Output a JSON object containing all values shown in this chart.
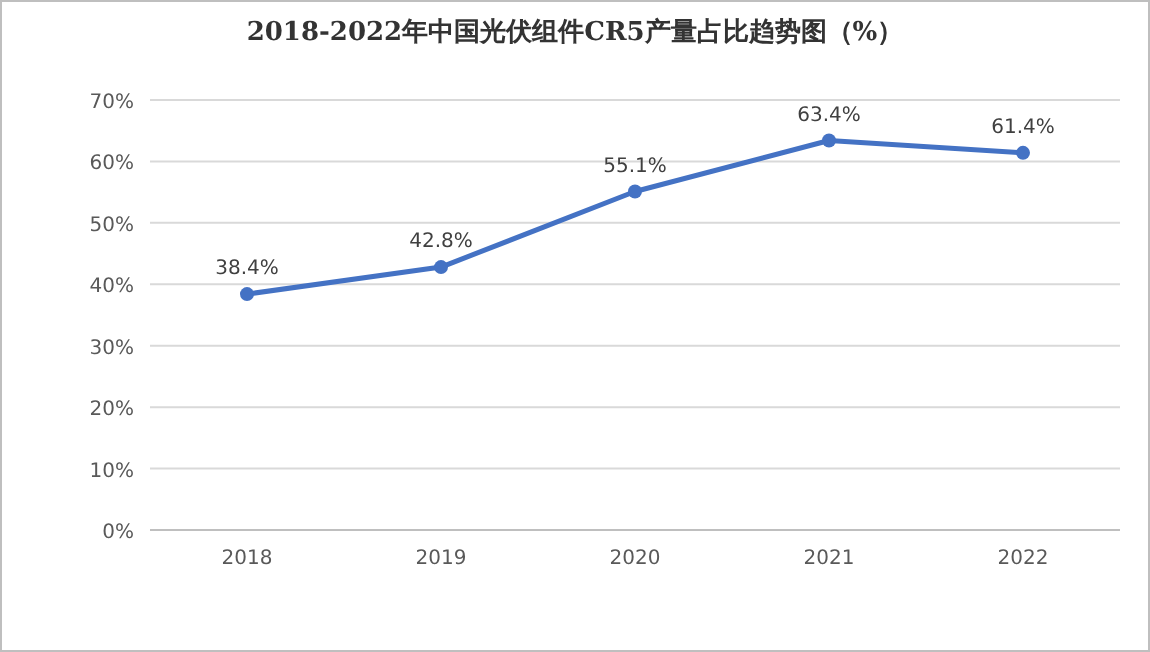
{
  "chart_data": {
    "type": "line",
    "title": "2018-2022年中国光伏组件CR5产量占比趋势图（%）",
    "categories": [
      "2018",
      "2019",
      "2020",
      "2021",
      "2022"
    ],
    "values": [
      38.4,
      42.8,
      55.1,
      63.4,
      61.4
    ],
    "value_labels": [
      "38.4%",
      "42.8%",
      "55.1%",
      "63.4%",
      "61.4%"
    ],
    "color": "#4472c4",
    "marker": "circle",
    "grid": "y",
    "ylim": [
      0,
      70
    ],
    "yticks": [
      {
        "value": 0,
        "label": "0%"
      },
      {
        "value": 10,
        "label": "10%"
      },
      {
        "value": 20,
        "label": "20%"
      },
      {
        "value": 30,
        "label": "30%"
      },
      {
        "value": 40,
        "label": "40%"
      },
      {
        "value": 50,
        "label": "50%"
      },
      {
        "value": 60,
        "label": "60%"
      },
      {
        "value": 70,
        "label": "70%"
      }
    ]
  }
}
